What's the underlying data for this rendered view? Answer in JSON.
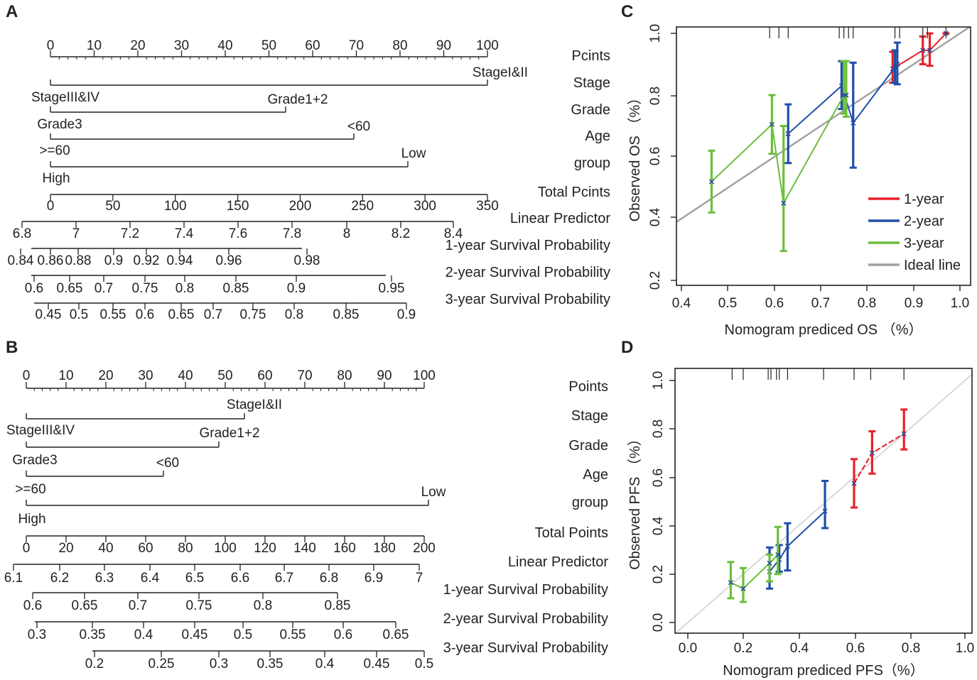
{
  "panels": {
    "A": {
      "letter": "A",
      "rows": [
        {
          "id": "points",
          "label": "Pcints",
          "ticks": [
            "0",
            "10",
            "20",
            "30",
            "40",
            "50",
            "60",
            "70",
            "80",
            "90",
            "100"
          ]
        },
        {
          "id": "stage",
          "label": "Stage",
          "high_label": "StageI&II",
          "low_label": "StageIII&IV"
        },
        {
          "id": "grade",
          "label": "Grade",
          "high_label": "Grade1+2",
          "low_label": "Grade3"
        },
        {
          "id": "age",
          "label": "Age",
          "high_label": "<60",
          "low_label": ">=60"
        },
        {
          "id": "group",
          "label": "group",
          "high_label": "Low",
          "low_label": "High"
        },
        {
          "id": "total",
          "label": "Total Pcints",
          "ticks": [
            "0",
            "50",
            "100",
            "150",
            "200",
            "250",
            "300",
            "350"
          ]
        },
        {
          "id": "lp",
          "label": "Linear Predictor",
          "ticks": [
            "6.8",
            "7",
            "7.2",
            "7.4",
            "7.6",
            "7.8",
            "8",
            "8.2",
            "8.4"
          ]
        },
        {
          "id": "s1",
          "label": "1-year Survival Probability",
          "ticks": [
            "0.84",
            "0.86",
            "0.88",
            "0.9",
            "0.92",
            "0.94",
            "0.96",
            "0.98"
          ]
        },
        {
          "id": "s2",
          "label": "2-year Survival Probability",
          "ticks": [
            "0.6",
            "0.65",
            "0.7",
            "0.75",
            "0.8",
            "0.85",
            "0.9",
            "0.95"
          ]
        },
        {
          "id": "s3",
          "label": "3-year Survival Probability",
          "ticks": [
            "0.45",
            "0.5",
            "0.55",
            "0.6",
            "0.65",
            "0.7",
            "0.75",
            "0.8",
            "0.85",
            "0.9"
          ]
        }
      ]
    },
    "B": {
      "letter": "B",
      "rows": [
        {
          "id": "points",
          "label": "Points",
          "ticks": [
            "0",
            "10",
            "20",
            "30",
            "40",
            "50",
            "60",
            "70",
            "80",
            "90",
            "100"
          ]
        },
        {
          "id": "stage",
          "label": "Stage",
          "high_label": "StageI&II",
          "low_label": "StageIII&IV"
        },
        {
          "id": "grade",
          "label": "Grade",
          "high_label": "Grade1+2",
          "low_label": "Grade3"
        },
        {
          "id": "age",
          "label": "Age",
          "high_label": "<60",
          "low_label": ">=60"
        },
        {
          "id": "group",
          "label": "group",
          "high_label": "Low",
          "low_label": "High"
        },
        {
          "id": "total",
          "label": "Total Points",
          "ticks": [
            "0",
            "20",
            "40",
            "60",
            "80",
            "100",
            "120",
            "140",
            "160",
            "180",
            "200"
          ]
        },
        {
          "id": "lp",
          "label": "Linear Predictor",
          "ticks": [
            "6.1",
            "6.2",
            "6.3",
            "6.4",
            "6.5",
            "6.6",
            "6.7",
            "6.8",
            "6.9",
            "7"
          ]
        },
        {
          "id": "s1",
          "label": "1-year Survival Probability",
          "ticks": [
            "0.6",
            "0.65",
            "0.7",
            "0.75",
            "0.8",
            "0.85"
          ]
        },
        {
          "id": "s2",
          "label": "2-year Survival Probability",
          "ticks": [
            "0.3",
            "0.35",
            "0.4",
            "0.45",
            "0.5",
            "0.55",
            "0.6",
            "0.65"
          ]
        },
        {
          "id": "s3",
          "label": "3-year Survival Probability",
          "ticks": [
            "0.2",
            "0.25",
            "0.3",
            "0.35",
            "0.4",
            "0.45",
            "0.5"
          ]
        }
      ]
    },
    "C": {
      "letter": "C"
    },
    "D": {
      "letter": "D"
    }
  },
  "colors": {
    "y1": "#e8202a",
    "y2": "#1f4fa8",
    "y3": "#6bbf3a",
    "ideal": "#a0a0a0",
    "ideal_light": "#d0d0d0",
    "axis": "#222222"
  },
  "chart_data": [
    {
      "type": "nomogram",
      "panel": "A",
      "title": "",
      "variables": [
        {
          "name": "Stage",
          "levels": [
            "StageIII&IV",
            "StageI&II"
          ],
          "points": [
            0,
            100
          ]
        },
        {
          "name": "Grade",
          "levels": [
            "Grade3",
            "Grade1+2"
          ],
          "points": [
            0,
            54
          ]
        },
        {
          "name": "Age",
          "levels": [
            ">=60",
            "<60"
          ],
          "points": [
            0,
            69
          ]
        },
        {
          "name": "group",
          "levels": [
            "High",
            "Low"
          ],
          "points": [
            0,
            82
          ]
        }
      ],
      "points_range": [
        0,
        100
      ],
      "total_points_range": [
        0,
        350
      ],
      "linear_predictor_range": [
        6.8,
        8.4
      ],
      "survival_1yr_range": [
        0.84,
        0.98
      ],
      "survival_2yr_range": [
        0.6,
        0.95
      ],
      "survival_3yr_range": [
        0.45,
        0.9
      ]
    },
    {
      "type": "nomogram",
      "panel": "B",
      "title": "",
      "variables": [
        {
          "name": "Stage",
          "levels": [
            "StageIII&IV",
            "StageI&II"
          ],
          "points": [
            0,
            55
          ]
        },
        {
          "name": "Grade",
          "levels": [
            "Grade3",
            "Grade1+2"
          ],
          "points": [
            0,
            48
          ]
        },
        {
          "name": "Age",
          "levels": [
            ">=60",
            "<60"
          ],
          "points": [
            0,
            34
          ]
        },
        {
          "name": "group",
          "levels": [
            "High",
            "Low"
          ],
          "points": [
            0,
            100
          ]
        }
      ],
      "points_range": [
        0,
        100
      ],
      "total_points_range": [
        0,
        200
      ],
      "linear_predictor_range": [
        6.1,
        7
      ],
      "survival_1yr_range": [
        0.6,
        0.85
      ],
      "survival_2yr_range": [
        0.3,
        0.65
      ],
      "survival_3yr_range": [
        0.2,
        0.5
      ]
    },
    {
      "type": "line",
      "panel": "C",
      "xlabel": "Nomogram prediced OS （%）",
      "ylabel": "Observed OS （%）",
      "xlim": [
        0.37,
        1.02
      ],
      "ylim": [
        0.15,
        1.02
      ],
      "xticks": [
        "0.4",
        "0.5",
        "0.6",
        "0.7",
        "0.8",
        "0.9",
        "1.0"
      ],
      "yticks": [
        "0.2",
        "0.4",
        "0.6",
        "0.8",
        "1.0"
      ],
      "legend_position": "bottom-right",
      "rug": [
        0.59,
        0.61,
        0.63,
        0.74,
        0.75,
        0.76,
        0.77,
        0.86,
        0.87,
        0.92,
        0.93,
        0.97
      ],
      "series": [
        {
          "name": "1-year",
          "color_key": "y1",
          "points": [
            {
              "x": 0.855,
              "y": 0.885,
              "lo": 0.84,
              "hi": 0.94
            },
            {
              "x": 0.92,
              "y": 0.945,
              "lo": 0.9,
              "hi": 0.99
            },
            {
              "x": 0.935,
              "y": 0.945,
              "lo": 0.895,
              "hi": 1.0
            },
            {
              "x": 0.97,
              "y": 1.0,
              "lo": 1.0,
              "hi": 1.0
            }
          ]
        },
        {
          "name": "2-year",
          "color_key": "y2",
          "points": [
            {
              "x": 0.63,
              "y": 0.675,
              "lo": 0.58,
              "hi": 0.77
            },
            {
              "x": 0.745,
              "y": 0.83,
              "lo": 0.755,
              "hi": 0.91
            },
            {
              "x": 0.77,
              "y": 0.71,
              "lo": 0.565,
              "hi": 0.905
            },
            {
              "x": 0.86,
              "y": 0.89,
              "lo": 0.84,
              "hi": 0.945
            },
            {
              "x": 0.865,
              "y": 0.9,
              "lo": 0.835,
              "hi": 0.97
            }
          ]
        },
        {
          "name": "3-year",
          "color_key": "y3",
          "points": [
            {
              "x": 0.465,
              "y": 0.52,
              "lo": 0.42,
              "hi": 0.62
            },
            {
              "x": 0.595,
              "y": 0.705,
              "lo": 0.61,
              "hi": 0.8
            },
            {
              "x": 0.62,
              "y": 0.45,
              "lo": 0.295,
              "hi": 0.7
            },
            {
              "x": 0.75,
              "y": 0.8,
              "lo": 0.74,
              "hi": 0.91
            },
            {
              "x": 0.755,
              "y": 0.8,
              "lo": 0.73,
              "hi": 0.91
            }
          ]
        },
        {
          "name": "Ideal line",
          "color_key": "ideal",
          "ideal": true
        }
      ]
    },
    {
      "type": "line",
      "panel": "D",
      "xlabel": "Nomogram prediced PFS（%）",
      "ylabel": "Observed PFS （%）",
      "xlim": [
        -0.04,
        1.04
      ],
      "ylim": [
        -0.04,
        1.04
      ],
      "xticks": [
        "0.0",
        "0.2",
        "0.4",
        "0.6",
        "0.8",
        "1.0"
      ],
      "yticks": [
        "0.0",
        "0.2",
        "0.4",
        "0.6",
        "0.8",
        "1.0"
      ],
      "rug": [
        0.16,
        0.2,
        0.29,
        0.3,
        0.32,
        0.33,
        0.36,
        0.49,
        0.6,
        0.66,
        0.78
      ],
      "series": [
        {
          "name": "1-year",
          "color_key": "y1",
          "points": [
            {
              "x": 0.6,
              "y": 0.575,
              "lo": 0.475,
              "hi": 0.675
            },
            {
              "x": 0.665,
              "y": 0.7,
              "lo": 0.615,
              "hi": 0.79
            },
            {
              "x": 0.78,
              "y": 0.78,
              "lo": 0.715,
              "hi": 0.88
            }
          ]
        },
        {
          "name": "2-year",
          "color_key": "y2",
          "points": [
            {
              "x": 0.295,
              "y": 0.21,
              "lo": 0.14,
              "hi": 0.31
            },
            {
              "x": 0.33,
              "y": 0.26,
              "lo": 0.21,
              "hi": 0.32
            },
            {
              "x": 0.36,
              "y": 0.315,
              "lo": 0.215,
              "hi": 0.41
            },
            {
              "x": 0.495,
              "y": 0.46,
              "lo": 0.39,
              "hi": 0.585
            }
          ]
        },
        {
          "name": "3-year",
          "color_key": "y3",
          "points": [
            {
              "x": 0.155,
              "y": 0.165,
              "lo": 0.1,
              "hi": 0.25
            },
            {
              "x": 0.2,
              "y": 0.14,
              "lo": 0.085,
              "hi": 0.225
            },
            {
              "x": 0.295,
              "y": 0.245,
              "lo": 0.17,
              "hi": 0.28
            },
            {
              "x": 0.325,
              "y": 0.28,
              "lo": 0.2,
              "hi": 0.395
            }
          ]
        },
        {
          "name": "Ideal line",
          "color_key": "ideal_light",
          "ideal": true
        }
      ]
    }
  ]
}
